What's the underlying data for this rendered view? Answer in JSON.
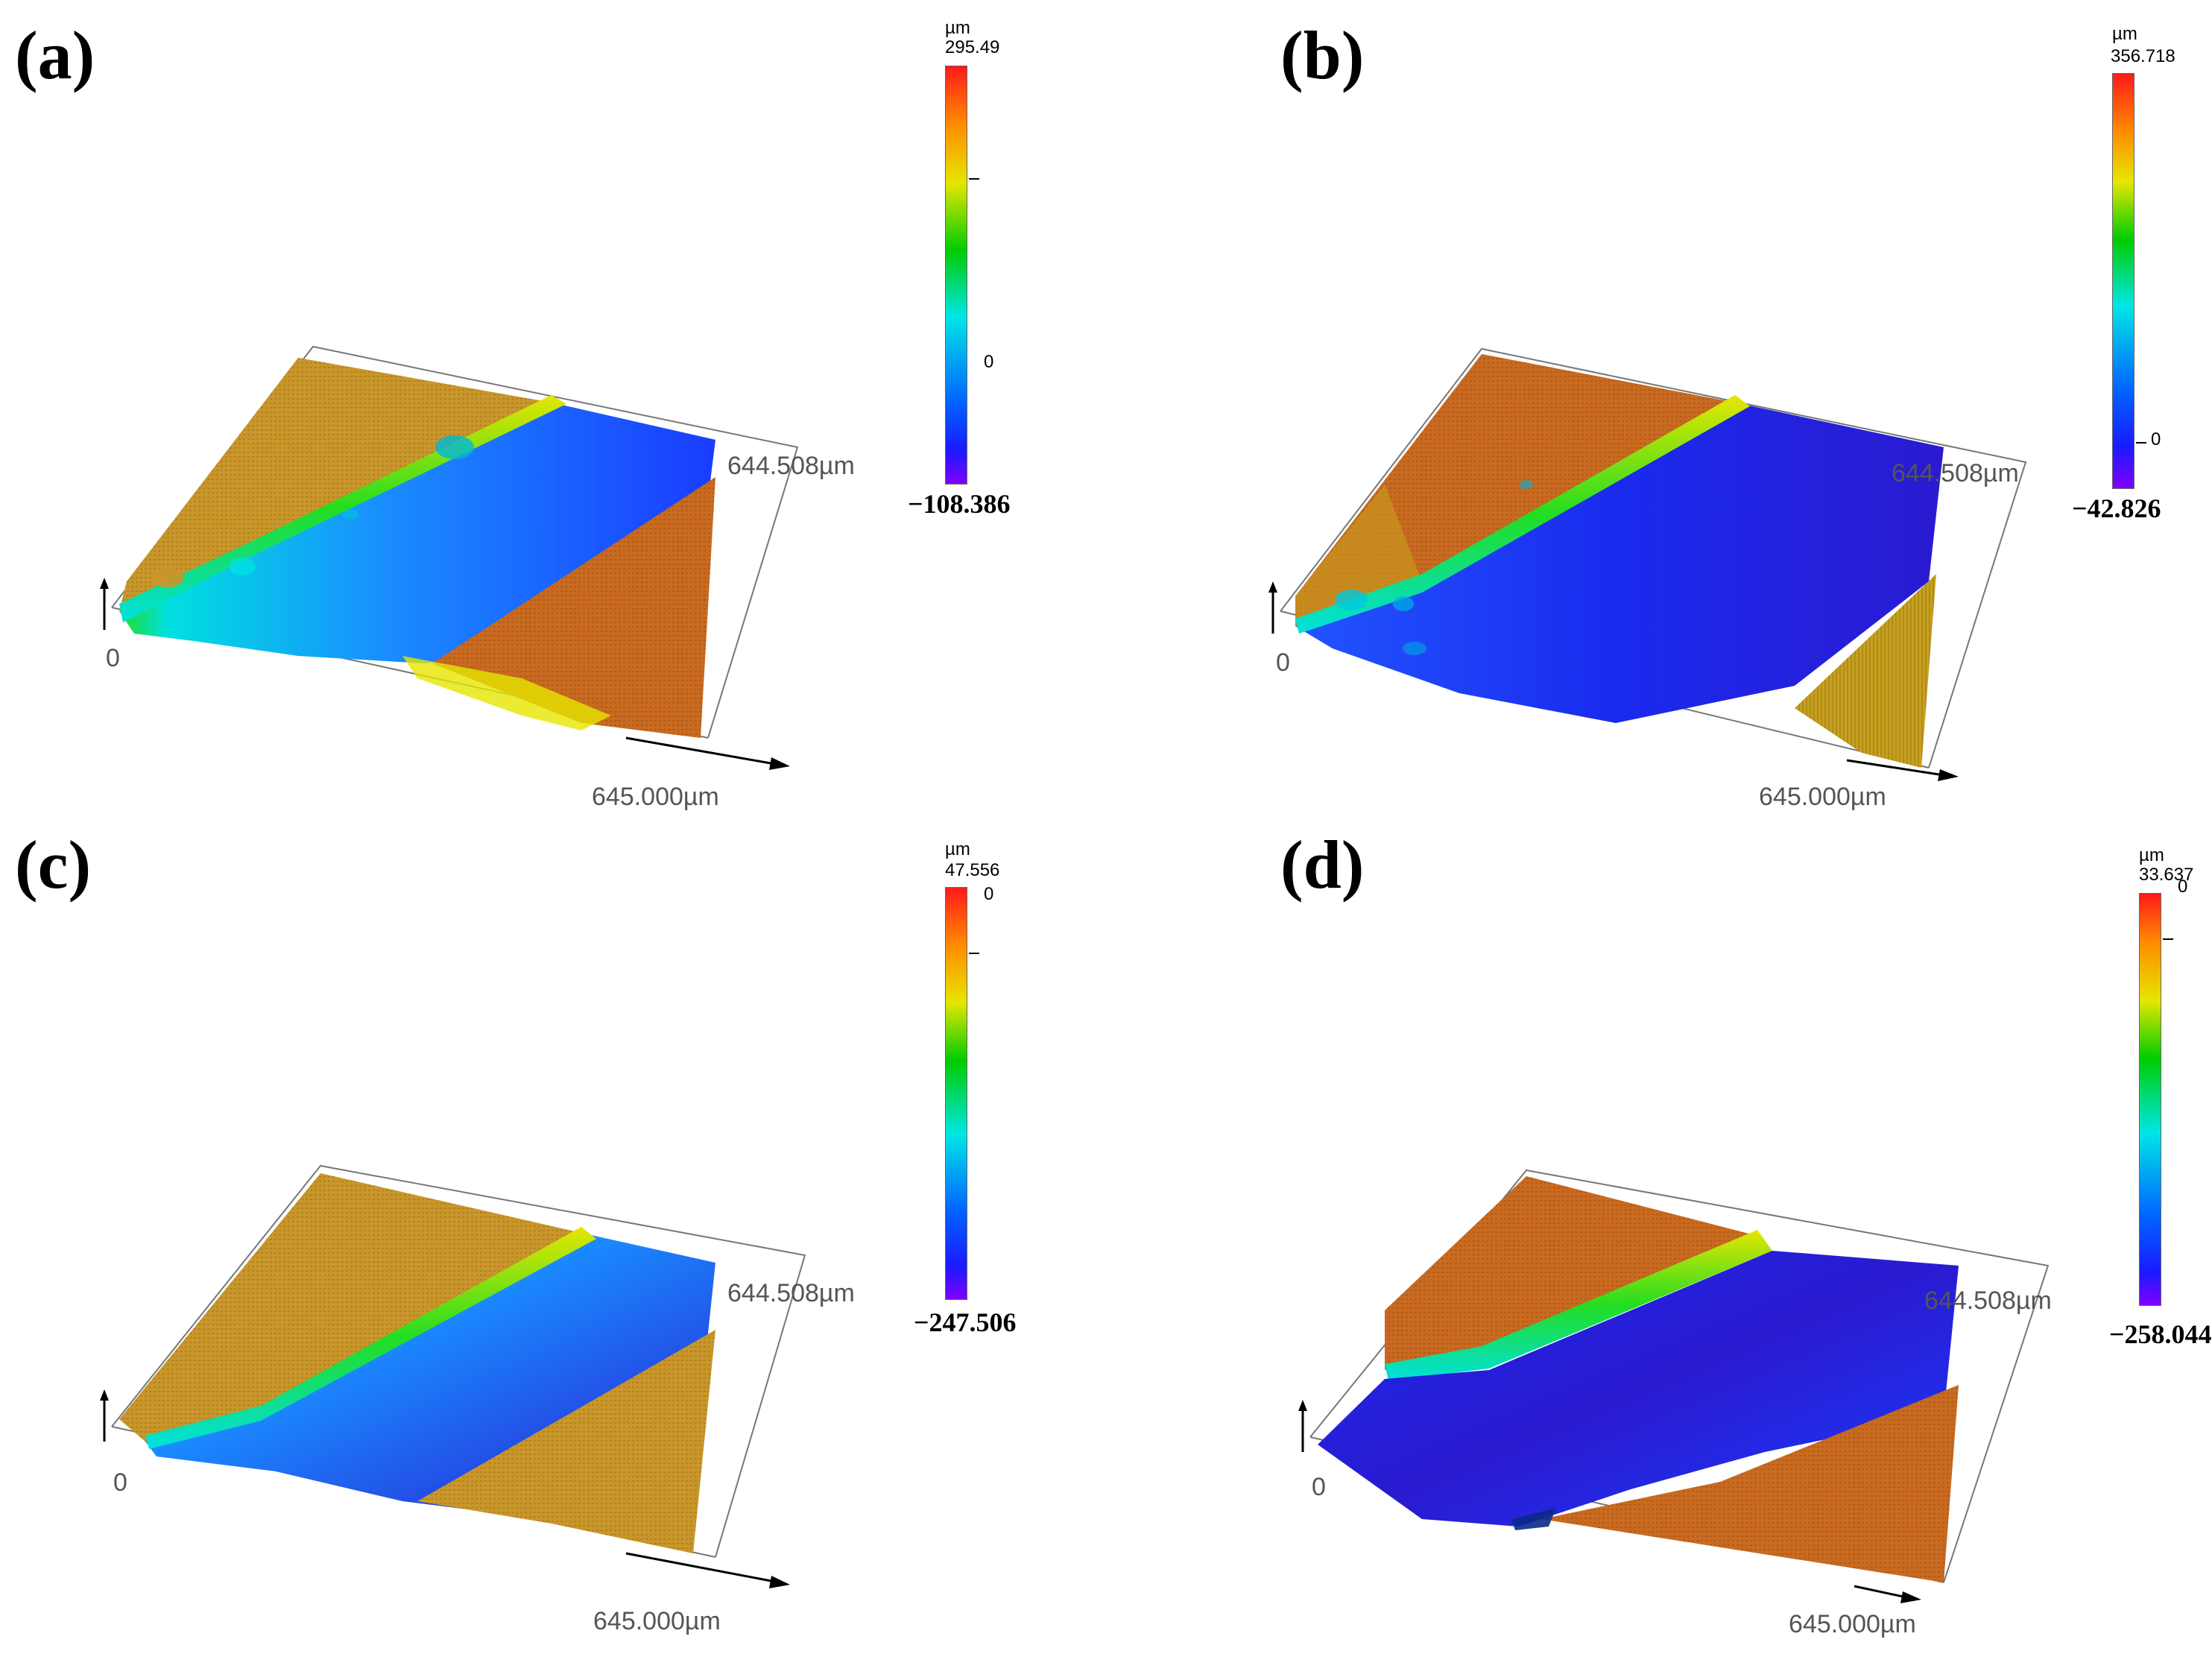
{
  "panels": [
    {
      "label": "(a)",
      "colorbar": {
        "unit": "µm",
        "max": "295.49",
        "zero": "0",
        "min": "−108.386",
        "zero_level": 0.73
      },
      "axes": {
        "origin": "0",
        "y_extent": "644.508µm",
        "x_extent": "645.000µm"
      }
    },
    {
      "label": "(b)",
      "colorbar": {
        "unit": "µm",
        "max": "356.718",
        "zero": "0",
        "min": "−42.826",
        "zero_level": 0.11
      },
      "axes": {
        "origin": "0",
        "y_extent": "644.508µm",
        "x_extent": "645.000µm"
      }
    },
    {
      "label": "(c)",
      "colorbar": {
        "unit": "µm",
        "max": "47.556",
        "zero": "0",
        "min": "−247.506",
        "zero_level": 0.84
      },
      "axes": {
        "origin": "0",
        "y_extent": "644.508µm",
        "x_extent": "645.000µm"
      }
    },
    {
      "label": "(d)",
      "colorbar": {
        "unit": "µm",
        "max": "33.637",
        "zero": "0",
        "min": "−258.044",
        "zero_level": 0.89
      },
      "axes": {
        "origin": "0",
        "y_extent": "644.508µm",
        "x_extent": "645.000µm"
      }
    }
  ],
  "colors": {
    "colormap": [
      "#ff1a1a",
      "#ff8c00",
      "#e6e600",
      "#00cc00",
      "#00e6e6",
      "#0066ff",
      "#1a1aff",
      "#8000ff"
    ],
    "plateau_a": "#c8962a",
    "plateau_orange": "#c86a20",
    "groove_blue": "#1a3cff",
    "groove_green": "#22dd22"
  }
}
